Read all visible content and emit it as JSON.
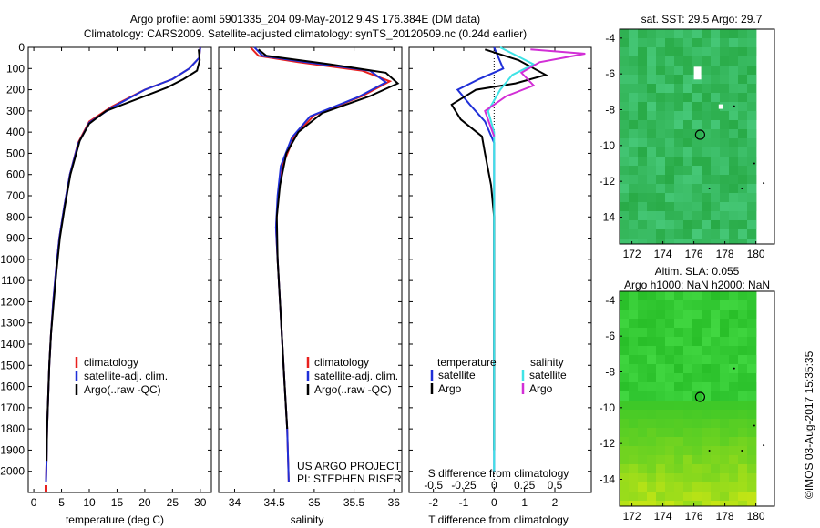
{
  "header": {
    "line1": "Argo profile: aoml 5901335_204 09-May-2012 9.4S 176.384E (DM data)",
    "line2": "Climatology: CARS2009. Satellite-adjusted climatology: synTS_20120509.nc (0.24d earlier)"
  },
  "side_stamp": "©IMOS 03-Aug-2017 15:35:35",
  "colors": {
    "climatology": "#e8201e",
    "satellite": "#1f2fd8",
    "argo": "#000000",
    "salinity_sat": "#3fe3e6",
    "salinity_argo": "#d22fd6"
  },
  "chart_data": [
    {
      "type": "line",
      "name": "temperature-panel",
      "xlabel": "temperature (deg C)",
      "ylim": [
        2100,
        0
      ],
      "xlim": [
        -1,
        32
      ],
      "xticks": [
        "0",
        "5",
        "10",
        "15",
        "20",
        "25",
        "30"
      ],
      "xtick_values": [
        0,
        5,
        10,
        15,
        20,
        25,
        30
      ],
      "yticks": [
        "0",
        "100",
        "200",
        "300",
        "400",
        "500",
        "600",
        "700",
        "800",
        "900",
        "1000",
        "1100",
        "1200",
        "1300",
        "1400",
        "1500",
        "1600",
        "1700",
        "1800",
        "1900",
        "2000"
      ],
      "ytick_values": [
        0,
        100,
        200,
        300,
        400,
        500,
        600,
        700,
        800,
        900,
        1000,
        1100,
        1200,
        1300,
        1400,
        1500,
        1600,
        1700,
        1800,
        1900,
        2000
      ],
      "legend": [
        "climatology",
        "satellite-adj. clim.",
        "Argo(..raw -QC)"
      ],
      "series": [
        {
          "name": "climatology",
          "color": "#e8201e",
          "x": [
            30,
            29.8,
            28,
            25,
            20,
            14,
            10,
            8,
            6.5,
            5.5,
            4.6,
            4.0,
            3.5,
            3.1,
            2.8,
            2.6,
            2.4,
            2.3,
            2.2
          ],
          "y": [
            0,
            50,
            100,
            150,
            200,
            280,
            350,
            450,
            600,
            750,
            900,
            1050,
            1200,
            1350,
            1500,
            1650,
            1800,
            1950,
            2050
          ]
        },
        {
          "name": "satellite-adj. clim.",
          "color": "#1f2fd8",
          "x": [
            30,
            29.8,
            28,
            25,
            20,
            14,
            10,
            8,
            6.5,
            5.5,
            4.6,
            4.0,
            3.5,
            3.1,
            2.8,
            2.6,
            2.4,
            2.3,
            2.2
          ],
          "y": [
            0,
            50,
            100,
            150,
            200,
            285,
            355,
            455,
            600,
            750,
            900,
            1050,
            1200,
            1350,
            1500,
            1650,
            1800,
            1950,
            2050
          ]
        },
        {
          "name": "Argo(..raw -QC)",
          "color": "#000000",
          "x": [
            29.7,
            29.9,
            29.4,
            27,
            24,
            19,
            13,
            10,
            8.3,
            6.6,
            5.6,
            4.7,
            4.1,
            3.6,
            3.1,
            2.8,
            2.6,
            2.4,
            2.3
          ],
          "y": [
            10,
            60,
            110,
            150,
            190,
            240,
            300,
            360,
            440,
            600,
            750,
            900,
            1050,
            1200,
            1350,
            1500,
            1650,
            1800,
            1950
          ]
        }
      ]
    },
    {
      "type": "line",
      "name": "salinity-panel",
      "xlabel": "salinity",
      "ylim": [
        2100,
        0
      ],
      "xlim": [
        33.8,
        36.1
      ],
      "xticks": [
        "34",
        "34.5",
        "35",
        "35.5",
        "36"
      ],
      "xtick_values": [
        34,
        34.5,
        35,
        35.5,
        36
      ],
      "legend": [
        "climatology",
        "satellite-adj. clim.",
        "Argo(..raw -QC)"
      ],
      "annotation": [
        "US ARGO PROJECT",
        "PI: STEPHEN RISER"
      ],
      "series": [
        {
          "name": "climatology",
          "color": "#e8201e",
          "x": [
            34.2,
            34.3,
            34.8,
            35.6,
            35.95,
            35.6,
            35.0,
            34.75,
            34.6,
            34.55,
            34.52,
            34.54,
            34.57,
            34.6,
            34.63,
            34.66,
            34.68
          ],
          "y": [
            0,
            40,
            70,
            110,
            160,
            230,
            320,
            420,
            560,
            700,
            850,
            1000,
            1200,
            1400,
            1600,
            1800,
            2050
          ]
        },
        {
          "name": "satellite-adj. clim.",
          "color": "#1f2fd8",
          "x": [
            34.25,
            34.35,
            34.9,
            35.7,
            35.9,
            35.55,
            34.95,
            34.72,
            34.58,
            34.54,
            34.52,
            34.54,
            34.57,
            34.6,
            34.63,
            34.66,
            34.68
          ],
          "y": [
            0,
            40,
            70,
            110,
            165,
            235,
            325,
            425,
            560,
            700,
            850,
            1000,
            1200,
            1400,
            1600,
            1800,
            2050
          ]
        },
        {
          "name": "Argo(..raw -QC)",
          "color": "#000000",
          "x": [
            34.3,
            34.4,
            35.2,
            35.9,
            36.05,
            35.7,
            35.1,
            34.8,
            34.65,
            34.57,
            34.53,
            34.54,
            34.57,
            34.6,
            34.63,
            34.66
          ],
          "y": [
            10,
            40,
            80,
            120,
            170,
            230,
            310,
            400,
            500,
            650,
            800,
            1000,
            1200,
            1400,
            1600,
            1800
          ]
        }
      ]
    },
    {
      "type": "line",
      "name": "difference-panel",
      "xlabel": "T difference from climatology",
      "top_axis_label": "S difference from climatology",
      "ylim": [
        2100,
        0
      ],
      "xlim": [
        -2.8,
        3.2
      ],
      "xticks": [
        "-2",
        "-1",
        "0",
        "1",
        "2"
      ],
      "xtick_values": [
        -2,
        -1,
        0,
        1,
        2
      ],
      "sticks": [
        "-0.5",
        "-0.25",
        "0",
        "0.25",
        "0.5"
      ],
      "stick_values": [
        -2,
        -1,
        0,
        1,
        2
      ],
      "legend_temperature": {
        "header": "temperature",
        "items": [
          "satellite",
          "Argo"
        ]
      },
      "legend_salinity": {
        "header": "salinity",
        "items": [
          "satellite",
          "Argo"
        ]
      },
      "series": [
        {
          "name": "temperature satellite",
          "color": "#1f2fd8",
          "x": [
            0,
            0.3,
            -0.5,
            -1.2,
            -0.8,
            -0.3,
            0,
            0,
            0,
            0,
            0,
            0
          ],
          "y": [
            0,
            100,
            150,
            200,
            270,
            350,
            450,
            600,
            900,
            1200,
            1600,
            2000
          ]
        },
        {
          "name": "temperature Argo",
          "color": "#000000",
          "x": [
            -0.3,
            0.8,
            1.7,
            0.7,
            -0.6,
            -1.4,
            -1.1,
            -0.4,
            -0.3,
            -0.1,
            0,
            0,
            0
          ],
          "y": [
            10,
            60,
            130,
            170,
            200,
            270,
            340,
            420,
            500,
            650,
            800,
            1100,
            1900
          ]
        },
        {
          "name": "salinity satellite",
          "color": "#3fe3e6",
          "x": [
            0.2,
            1.3,
            0.6,
            0.2,
            -0.2,
            0,
            0,
            0,
            0,
            0,
            0
          ],
          "y": [
            0,
            80,
            130,
            200,
            300,
            400,
            600,
            900,
            1300,
            1700,
            2000
          ]
        },
        {
          "name": "salinity Argo",
          "color": "#d22fd6",
          "x": [
            1.2,
            3.0,
            1.5,
            0.9,
            1.3,
            0.4,
            -0.3,
            0
          ],
          "y": [
            10,
            30,
            70,
            120,
            180,
            230,
            300,
            420
          ]
        }
      ]
    },
    {
      "type": "heatmap",
      "name": "sst-map",
      "title": "sat. SST: 29.5 Argo: 29.7",
      "xlim": [
        171.2,
        181.2
      ],
      "ylim": [
        -15.5,
        -3.5
      ],
      "xticks": [
        "172",
        "174",
        "176",
        "178",
        "180"
      ],
      "xtick_values": [
        172,
        174,
        176,
        178,
        180
      ],
      "yticks": [
        "-4",
        "-6",
        "-8",
        "-10",
        "-12",
        "-14"
      ],
      "ytick_values": [
        -4,
        -6,
        -8,
        -10,
        -12,
        -14
      ],
      "marker": {
        "lon": 176.4,
        "lat": -9.4
      }
    },
    {
      "type": "heatmap",
      "name": "sla-map",
      "title": [
        "Altim. SLA: 0.055",
        "Argo h1000: NaN h2000: NaN"
      ],
      "xlim": [
        171.2,
        181.2
      ],
      "ylim": [
        -15.5,
        -3.5
      ],
      "xticks": [
        "172",
        "174",
        "176",
        "178",
        "180"
      ],
      "xtick_values": [
        172,
        174,
        176,
        178,
        180
      ],
      "yticks": [
        "-4",
        "-6",
        "-8",
        "-10",
        "-12",
        "-14"
      ],
      "ytick_values": [
        -4,
        -6,
        -8,
        -10,
        -12,
        -14
      ],
      "marker": {
        "lon": 176.4,
        "lat": -9.4
      }
    }
  ]
}
